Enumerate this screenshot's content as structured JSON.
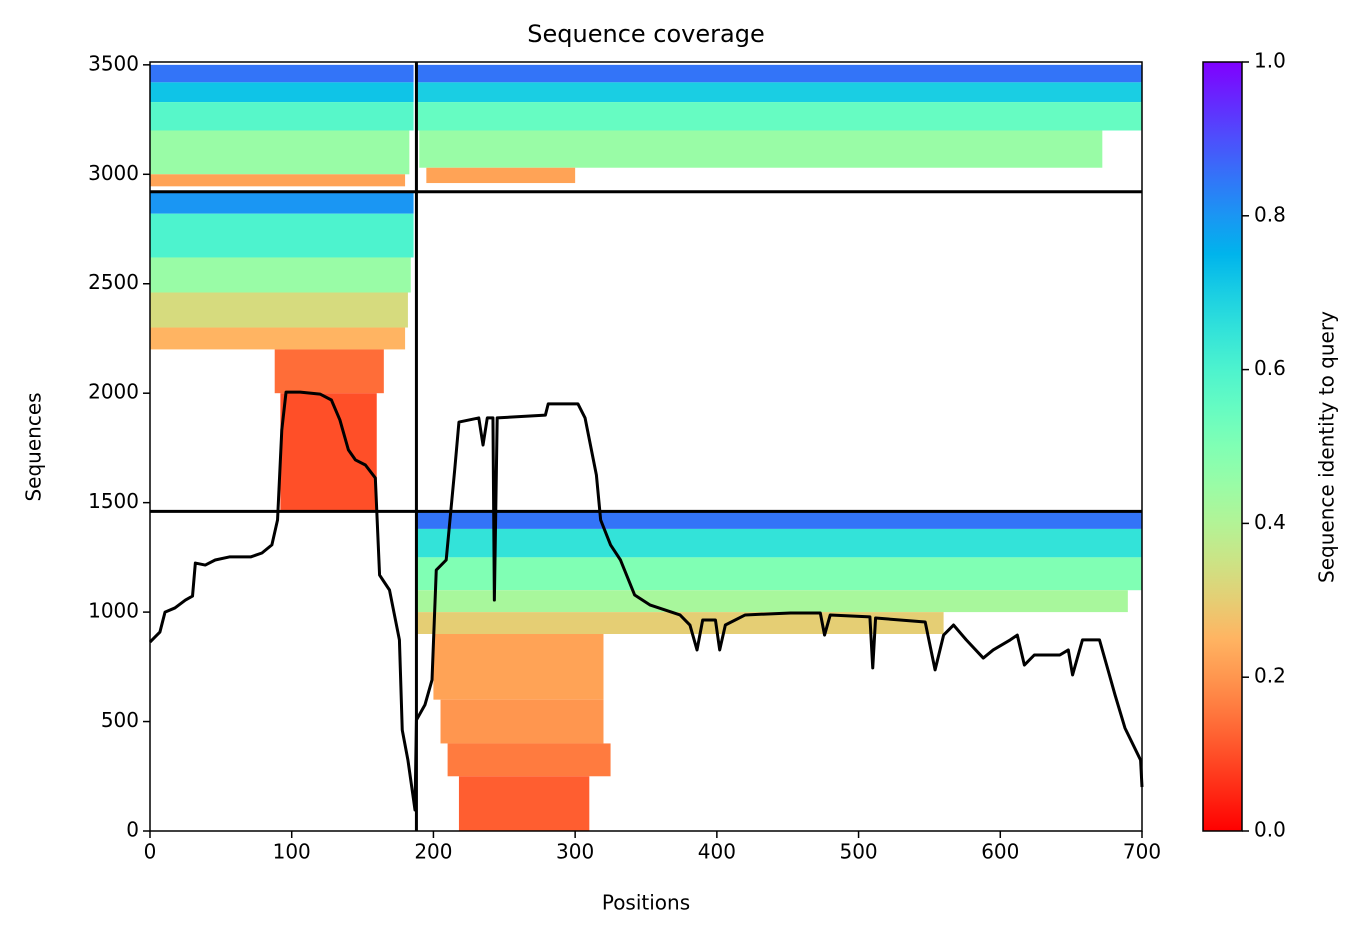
{
  "chart_data": {
    "type": "coverage",
    "title": "Sequence coverage",
    "xlabel": "Positions",
    "ylabel": "Sequences",
    "colorbar_label": "Sequence identity to query",
    "xlim": [
      0,
      700
    ],
    "ylim": [
      0,
      3513
    ],
    "xticks": [
      0,
      100,
      200,
      300,
      400,
      500,
      600,
      700
    ],
    "yticks": [
      0,
      500,
      1000,
      1500,
      2000,
      2500,
      3000,
      3500
    ],
    "clim": [
      0,
      1
    ],
    "cticks": [
      {
        "value": 0,
        "label": "0.0"
      },
      0.2,
      0.4,
      0.6,
      0.8,
      {
        "value": 1,
        "label": "1.0"
      }
    ],
    "colormap": "rainbow_r",
    "chain_breaks": {
      "x": [
        188
      ],
      "y": [
        1460,
        2920
      ]
    },
    "blocks": [
      {
        "rows": [
          3420,
          3500
        ],
        "cols": [
          0,
          186
        ],
        "identity": 0.85
      },
      {
        "rows": [
          3330,
          3420
        ],
        "cols": [
          0,
          186
        ],
        "identity": 0.72
      },
      {
        "rows": [
          3200,
          3330
        ],
        "cols": [
          0,
          186
        ],
        "identity": 0.58
      },
      {
        "rows": [
          3000,
          3200
        ],
        "cols": [
          0,
          183
        ],
        "identity": 0.45
      },
      {
        "rows": [
          2945,
          3000
        ],
        "cols": [
          0,
          180
        ],
        "identity": 0.22
      },
      {
        "rows": [
          3420,
          3500
        ],
        "cols": [
          188,
          700
        ],
        "identity": 0.85
      },
      {
        "rows": [
          3330,
          3420
        ],
        "cols": [
          188,
          700
        ],
        "identity": 0.7
      },
      {
        "rows": [
          3200,
          3330
        ],
        "cols": [
          188,
          700
        ],
        "identity": 0.55
      },
      {
        "rows": [
          3030,
          3200
        ],
        "cols": [
          190,
          672
        ],
        "identity": 0.45
      },
      {
        "rows": [
          2960,
          3030
        ],
        "cols": [
          195,
          300
        ],
        "identity": 0.22
      },
      {
        "rows": [
          2820,
          2920
        ],
        "cols": [
          0,
          186
        ],
        "identity": 0.8
      },
      {
        "rows": [
          2620,
          2820
        ],
        "cols": [
          0,
          186
        ],
        "identity": 0.6
      },
      {
        "rows": [
          2460,
          2620
        ],
        "cols": [
          0,
          184
        ],
        "identity": 0.45
      },
      {
        "rows": [
          2300,
          2460
        ],
        "cols": [
          0,
          182
        ],
        "identity": 0.33
      },
      {
        "rows": [
          2200,
          2300
        ],
        "cols": [
          0,
          180
        ],
        "identity": 0.25
      },
      {
        "rows": [
          2000,
          2200
        ],
        "cols": [
          88,
          165
        ],
        "identity": 0.14
      },
      {
        "rows": [
          1460,
          2000
        ],
        "cols": [
          92,
          160
        ],
        "identity": 0.1
      },
      {
        "rows": [
          1380,
          1460
        ],
        "cols": [
          188,
          700
        ],
        "identity": 0.85
      },
      {
        "rows": [
          1250,
          1380
        ],
        "cols": [
          188,
          700
        ],
        "identity": 0.65
      },
      {
        "rows": [
          1100,
          1250
        ],
        "cols": [
          188,
          700
        ],
        "identity": 0.5
      },
      {
        "rows": [
          1000,
          1100
        ],
        "cols": [
          188,
          690
        ],
        "identity": 0.42
      },
      {
        "rows": [
          900,
          1000
        ],
        "cols": [
          188,
          560
        ],
        "identity": 0.3
      },
      {
        "rows": [
          600,
          900
        ],
        "cols": [
          200,
          320
        ],
        "identity": 0.22
      },
      {
        "rows": [
          400,
          600
        ],
        "cols": [
          205,
          320
        ],
        "identity": 0.2
      },
      {
        "rows": [
          250,
          400
        ],
        "cols": [
          210,
          325
        ],
        "identity": 0.16
      },
      {
        "rows": [
          0,
          250
        ],
        "cols": [
          218,
          310
        ],
        "identity": 0.12
      }
    ],
    "coverage": {
      "color": "#000000",
      "x": [
        0,
        7,
        10.6,
        17.6,
        25,
        30,
        32,
        39,
        46,
        56,
        71,
        79,
        86,
        90,
        93,
        96,
        106,
        120,
        128,
        134,
        140,
        145,
        152,
        159,
        162,
        169,
        176,
        178,
        182,
        186,
        187,
        188,
        194,
        199,
        202,
        209,
        215,
        218,
        232,
        235,
        238,
        242,
        243,
        245,
        279,
        281,
        302,
        307,
        315,
        318,
        325,
        332,
        342,
        353,
        374,
        381,
        386,
        390,
        399,
        402,
        406,
        420,
        452,
        473,
        476,
        480,
        508,
        510,
        512,
        547,
        554,
        560,
        567,
        576,
        588,
        595,
        607,
        612,
        617,
        624,
        642,
        648,
        651,
        658,
        670,
        676,
        681,
        688,
        699,
        700
      ],
      "values": [
        863,
        909,
        1000,
        1019,
        1055,
        1073,
        1224,
        1215,
        1238,
        1252,
        1252,
        1270,
        1307,
        1421,
        1832,
        2005,
        2005,
        1996,
        1969,
        1878,
        1741,
        1695,
        1672,
        1613,
        1169,
        1101,
        873,
        461,
        324,
        142,
        96,
        507,
        576,
        690,
        1192,
        1238,
        1649,
        1868,
        1887,
        1763,
        1887,
        1887,
        1055,
        1887,
        1900,
        1951,
        1951,
        1887,
        1626,
        1421,
        1307,
        1238,
        1078,
        1032,
        987,
        941,
        827,
        964,
        964,
        827,
        941,
        987,
        996,
        996,
        895,
        987,
        978,
        745,
        973,
        955,
        736,
        895,
        941,
        873,
        790,
        827,
        873,
        895,
        758,
        804,
        804,
        827,
        713,
        873,
        873,
        736,
        621,
        470,
        324,
        201
      ]
    }
  }
}
